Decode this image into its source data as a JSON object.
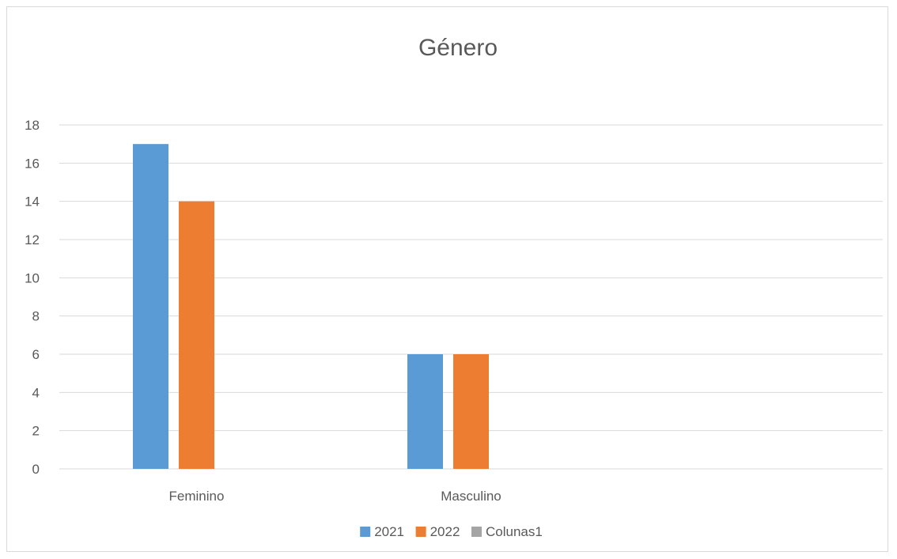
{
  "chart_data": {
    "type": "bar",
    "title": "Género",
    "xlabel": "",
    "ylabel": "",
    "categories": [
      "Feminino",
      "Masculino",
      ""
    ],
    "series": [
      {
        "name": "2021",
        "values": [
          17,
          6,
          null
        ],
        "color": "#5b9bd5"
      },
      {
        "name": "2022",
        "values": [
          14,
          6,
          null
        ],
        "color": "#ed7d31"
      },
      {
        "name": "Colunas1",
        "values": [
          null,
          null,
          null
        ],
        "color": "#a5a5a5"
      }
    ],
    "ylim": [
      0,
      18
    ],
    "y_ticks": [
      0,
      2,
      4,
      6,
      8,
      10,
      12,
      14,
      16,
      18
    ],
    "grid": true,
    "legend_position": "bottom",
    "gridline_color": "#d9d9d9",
    "text_color": "#595959"
  }
}
